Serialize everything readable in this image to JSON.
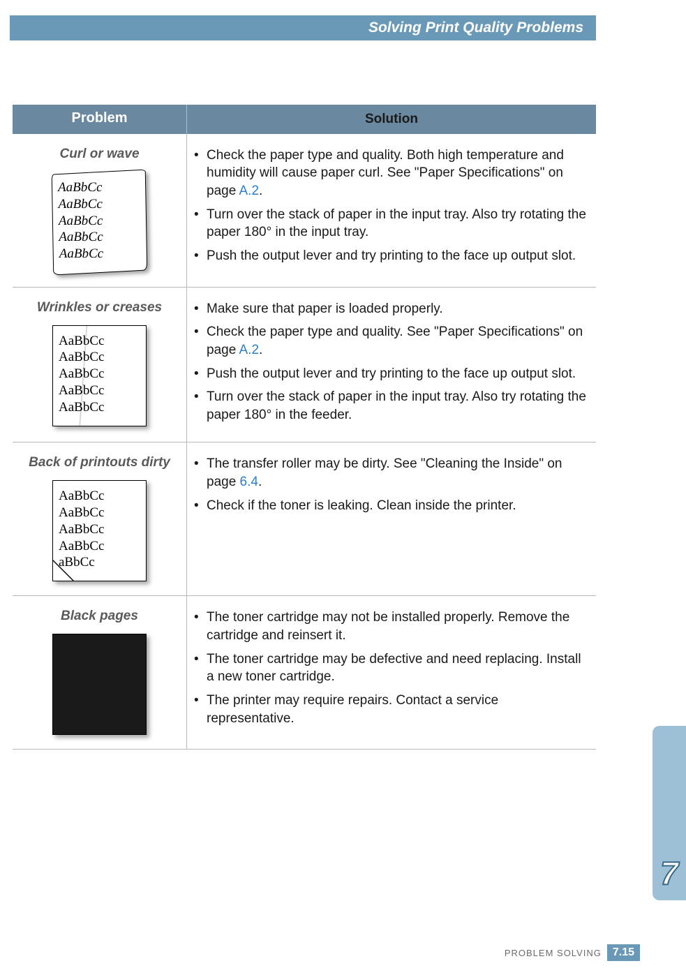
{
  "header": {
    "title": "Solving Print Quality Problems"
  },
  "table": {
    "head": {
      "problem": "Problem",
      "solution": "Solution"
    },
    "rows": [
      {
        "title": "Curl or wave",
        "sample_lines": [
          "AaBbCc",
          "AaBbCc",
          "AaBbCc",
          "AaBbCc",
          "AaBbCc"
        ],
        "sample_class": "wavy",
        "bullets": [
          {
            "pre": "Check the paper type and quality. Both high temperature and humidity will cause paper curl. See \"Paper Specifications\" on page ",
            "link": "A.2",
            "post": "."
          },
          {
            "pre": "Turn over the stack of paper in the input tray. Also try rotating the paper 180° in the input tray.",
            "link": "",
            "post": ""
          },
          {
            "pre": "Push the output lever and try printing to the face up output slot.",
            "link": "",
            "post": ""
          }
        ]
      },
      {
        "title": "Wrinkles or creases",
        "sample_lines": [
          "AaBbCc",
          "AaBbCc",
          "AaBbCc",
          "AaBbCc",
          "AaBbCc"
        ],
        "sample_class": "crease",
        "bullets": [
          {
            "pre": "Make sure that paper is loaded properly.",
            "link": "",
            "post": ""
          },
          {
            "pre": "Check the paper type and quality. See \"Paper Specifications\" on page ",
            "link": "A.2",
            "post": "."
          },
          {
            "pre": "Push the output lever and try printing to the face up output slot.",
            "link": "",
            "post": ""
          },
          {
            "pre": "Turn over the stack of paper in the input tray. Also try rotating the paper 180° in the feeder.",
            "link": "",
            "post": ""
          }
        ]
      },
      {
        "title": "Back of printouts dirty",
        "sample_lines": [
          "AaBbCc",
          "AaBbCc",
          "AaBbCc",
          "AaBbCc",
          "aBbCc"
        ],
        "sample_class": "dogear",
        "bullets": [
          {
            "pre": "The transfer roller may be dirty. See \"Cleaning the Inside\" on page ",
            "link": "6.4",
            "post": "."
          },
          {
            "pre": "Check if the toner is leaking. Clean inside the printer.",
            "link": "",
            "post": ""
          }
        ]
      },
      {
        "title": "Black pages",
        "sample_lines": [],
        "sample_class": "blackpage",
        "bullets": [
          {
            "pre": "The toner cartridge may not be installed properly. Remove the cartridge and reinsert it.",
            "link": "",
            "post": ""
          },
          {
            "pre": "The toner cartridge may be defective and need replacing. Install a new toner cartridge.",
            "link": "",
            "post": ""
          },
          {
            "pre": "The printer may require repairs. Contact a service representative.",
            "link": "",
            "post": ""
          }
        ]
      }
    ]
  },
  "side_tab": {
    "number": "7"
  },
  "footer": {
    "label": "PROBLEM SOLVING",
    "page": "7.15"
  },
  "colors": {
    "header_bg": "#6a99b8",
    "thead_bg": "#6a88a0",
    "link": "#2a7fc9",
    "sidetab_bg": "#9dc0d6",
    "border": "#b8b8b8"
  }
}
